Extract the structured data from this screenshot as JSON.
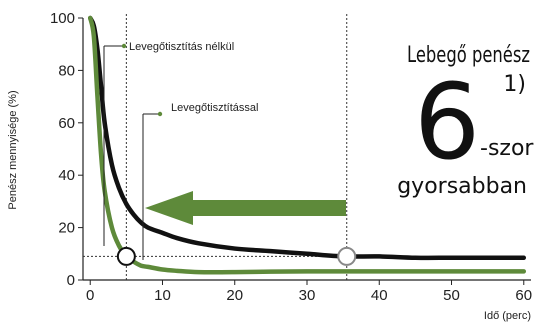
{
  "chart_data": {
    "type": "line",
    "xlabel": "Idő (perc)",
    "ylabel": "Penész mennyisége (%)",
    "xlim": [
      -1,
      61
    ],
    "ylim": [
      0,
      100
    ],
    "x_ticks": [
      "0",
      "10",
      "20",
      "30",
      "40",
      "50",
      "60"
    ],
    "y_ticks": [
      "0",
      "20",
      "40",
      "60",
      "80",
      "100"
    ],
    "grid": false,
    "series": [
      {
        "name": "Levegőtisztítás nélkül",
        "color": "#111111",
        "x": [
          0,
          0.5,
          1,
          1.5,
          2,
          3,
          4,
          5,
          6,
          7,
          8,
          10,
          12,
          15,
          20,
          25,
          30,
          35,
          40,
          45,
          50,
          55,
          60
        ],
        "y": [
          100,
          97,
          88,
          74,
          60,
          44,
          35,
          29,
          25,
          22,
          20,
          18,
          16,
          14,
          12,
          11,
          10,
          9,
          9,
          8.5,
          8.5,
          8.5,
          8.5
        ]
      },
      {
        "name": "Levegőtisztítással",
        "color": "#5e8a3a",
        "x": [
          0,
          0.5,
          1,
          1.5,
          2,
          3,
          4,
          5,
          6,
          7,
          8,
          10,
          12,
          15,
          20,
          25,
          30,
          35,
          40,
          45,
          50,
          55,
          60
        ],
        "y": [
          100,
          93,
          70,
          48,
          34,
          20,
          13,
          9,
          7,
          5.5,
          5,
          4,
          3.5,
          3,
          3,
          3.2,
          3.3,
          3.3,
          3.3,
          3.3,
          3.3,
          3.3,
          3.3
        ]
      }
    ],
    "reference_points": [
      {
        "x": 5,
        "y": 9
      },
      {
        "x": 35.5,
        "y": 9
      }
    ],
    "vertical_guides": [
      5,
      35.5
    ],
    "horizontal_guide": 9,
    "annotation": {
      "line1": "Lebegő penész",
      "line2": "1)",
      "big_number": "6",
      "suffix": "-szor",
      "line3": "gyorsabban"
    },
    "arrow_color": "#5e8a3a"
  }
}
